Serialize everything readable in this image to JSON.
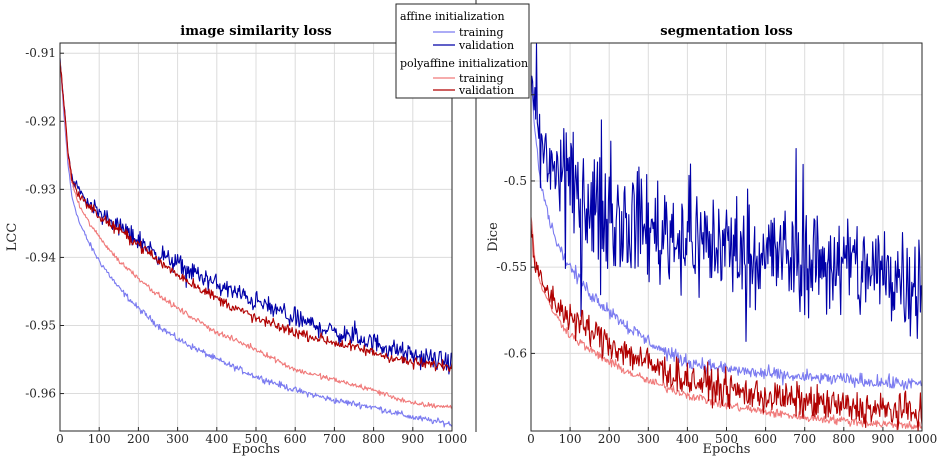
{
  "chart_data": [
    {
      "type": "line",
      "title": "image similarity loss",
      "xlabel": "Epochs",
      "ylabel": "LCC",
      "xlim": [
        0,
        1000
      ],
      "ylim": [
        -0.9655,
        -0.9085
      ],
      "xticks": [
        0,
        100,
        200,
        300,
        400,
        500,
        600,
        700,
        800,
        900,
        1000
      ],
      "yticks": [
        -0.91,
        -0.92,
        -0.93,
        -0.94,
        -0.95,
        -0.96
      ],
      "grid": true,
      "series": [
        {
          "name": "affine initialization training",
          "color": "#7b7bf0",
          "noise": 0.00035,
          "spike": 0,
          "x": [
            0,
            10,
            20,
            30,
            50,
            75,
            100,
            150,
            200,
            250,
            300,
            400,
            500,
            600,
            700,
            800,
            900,
            1000
          ],
          "values": [
            -0.911,
            -0.919,
            -0.926,
            -0.931,
            -0.935,
            -0.938,
            -0.9405,
            -0.9445,
            -0.9475,
            -0.95,
            -0.952,
            -0.955,
            -0.9575,
            -0.9595,
            -0.961,
            -0.962,
            -0.9635,
            -0.9645
          ]
        },
        {
          "name": "affine initialization validation",
          "color": "#0000a8",
          "noise": 0.0011,
          "spike": 0.003,
          "x": [
            0,
            10,
            20,
            30,
            50,
            75,
            100,
            150,
            200,
            250,
            300,
            400,
            500,
            600,
            700,
            800,
            900,
            1000
          ],
          "values": [
            -0.911,
            -0.9175,
            -0.924,
            -0.928,
            -0.9305,
            -0.932,
            -0.9335,
            -0.9355,
            -0.9375,
            -0.9395,
            -0.941,
            -0.944,
            -0.9465,
            -0.949,
            -0.951,
            -0.9525,
            -0.9545,
            -0.9555
          ]
        },
        {
          "name": "polyaffine initialization training",
          "color": "#f07a7a",
          "noise": 0.0003,
          "spike": 0,
          "x": [
            0,
            10,
            20,
            30,
            50,
            75,
            100,
            150,
            200,
            250,
            300,
            400,
            500,
            600,
            700,
            800,
            900,
            1000
          ],
          "values": [
            -0.911,
            -0.918,
            -0.925,
            -0.929,
            -0.9325,
            -0.935,
            -0.937,
            -0.9405,
            -0.943,
            -0.9455,
            -0.9475,
            -0.951,
            -0.9535,
            -0.9565,
            -0.958,
            -0.9595,
            -0.9615,
            -0.962
          ]
        },
        {
          "name": "polyaffine initialization validation",
          "color": "#b00000",
          "noise": 0.0006,
          "spike": 0,
          "x": [
            0,
            10,
            20,
            30,
            50,
            75,
            100,
            150,
            200,
            250,
            300,
            400,
            500,
            600,
            700,
            800,
            900,
            1000
          ],
          "values": [
            -0.911,
            -0.9175,
            -0.924,
            -0.9285,
            -0.931,
            -0.9325,
            -0.934,
            -0.936,
            -0.938,
            -0.9405,
            -0.9425,
            -0.946,
            -0.949,
            -0.951,
            -0.9525,
            -0.954,
            -0.9555,
            -0.956
          ]
        }
      ]
    },
    {
      "type": "line",
      "title": "segmentation loss",
      "xlabel": "Epochs",
      "ylabel": "Dice",
      "xlim": [
        0,
        1000
      ],
      "ylim": [
        -0.645,
        -0.42
      ],
      "xticks": [
        0,
        100,
        200,
        300,
        400,
        500,
        600,
        700,
        800,
        900,
        1000
      ],
      "yticks": [
        -0.45,
        -0.5,
        -0.55,
        -0.6
      ],
      "grid": true,
      "series": [
        {
          "name": "affine initialization training",
          "color": "#7b7bf0",
          "noise": 0.003,
          "spike": 0,
          "x": [
            0,
            10,
            25,
            50,
            75,
            100,
            150,
            200,
            250,
            300,
            350,
            400,
            500,
            600,
            700,
            800,
            900,
            1000
          ],
          "values": [
            -0.44,
            -0.47,
            -0.5,
            -0.525,
            -0.54,
            -0.55,
            -0.565,
            -0.575,
            -0.585,
            -0.593,
            -0.6,
            -0.605,
            -0.609,
            -0.612,
            -0.614,
            -0.615,
            -0.617,
            -0.618
          ]
        },
        {
          "name": "affine initialization validation",
          "color": "#0000a8",
          "noise": 0.024,
          "spike": 0.06,
          "x": [
            0,
            10,
            25,
            50,
            100,
            150,
            200,
            300,
            400,
            500,
            600,
            700,
            800,
            900,
            1000
          ],
          "values": [
            -0.44,
            -0.46,
            -0.475,
            -0.49,
            -0.505,
            -0.515,
            -0.52,
            -0.527,
            -0.533,
            -0.538,
            -0.542,
            -0.546,
            -0.549,
            -0.553,
            -0.556
          ]
        },
        {
          "name": "polyaffine initialization training",
          "color": "#f07a7a",
          "noise": 0.002,
          "spike": 0,
          "x": [
            0,
            10,
            25,
            50,
            75,
            100,
            150,
            200,
            250,
            300,
            350,
            400,
            500,
            600,
            700,
            800,
            900,
            1000
          ],
          "values": [
            -0.52,
            -0.545,
            -0.56,
            -0.573,
            -0.582,
            -0.589,
            -0.598,
            -0.605,
            -0.611,
            -0.616,
            -0.62,
            -0.624,
            -0.63,
            -0.634,
            -0.637,
            -0.639,
            -0.641,
            -0.642
          ]
        },
        {
          "name": "polyaffine initialization validation",
          "color": "#b00000",
          "noise": 0.0075,
          "spike": 0,
          "x": [
            0,
            10,
            25,
            50,
            75,
            100,
            150,
            200,
            250,
            300,
            350,
            400,
            500,
            600,
            700,
            800,
            900,
            1000
          ],
          "values": [
            -0.53,
            -0.548,
            -0.558,
            -0.567,
            -0.574,
            -0.579,
            -0.587,
            -0.594,
            -0.6,
            -0.606,
            -0.611,
            -0.615,
            -0.621,
            -0.625,
            -0.628,
            -0.631,
            -0.633,
            -0.634
          ]
        }
      ]
    }
  ],
  "legend": {
    "groups": [
      {
        "title": "affine initialization",
        "entries": [
          {
            "label": "training",
            "color": "#7b7bf0"
          },
          {
            "label": "validation",
            "color": "#0000a8"
          }
        ]
      },
      {
        "title": "polyaffine initialization",
        "entries": [
          {
            "label": "training",
            "color": "#f07a7a"
          },
          {
            "label": "validation",
            "color": "#b00000"
          }
        ]
      }
    ]
  }
}
